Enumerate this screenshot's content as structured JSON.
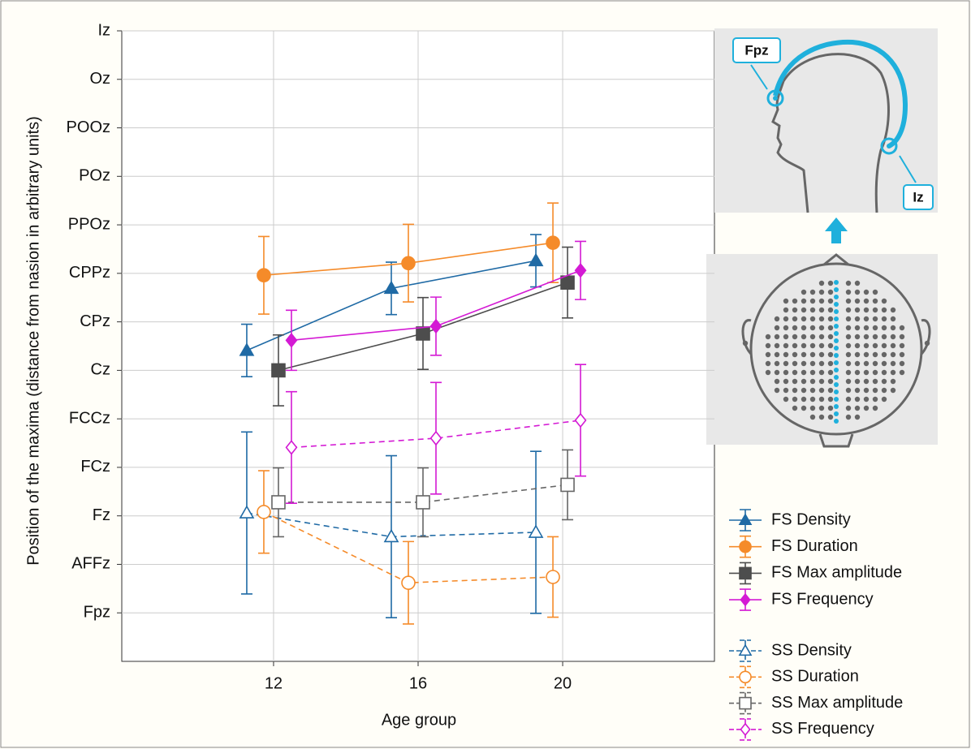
{
  "chart_data": {
    "type": "line",
    "xlabel": "Age group",
    "ylabel": "Position of the maxima (distance from nasion in arbitrary units)",
    "x": [
      12,
      16,
      20
    ],
    "xlim": [
      7.8,
      24.2
    ],
    "xticks": [
      12,
      16,
      20
    ],
    "ylim": [
      -1,
      12
    ],
    "yticks": [
      {
        "value": 0,
        "label": "Fpz"
      },
      {
        "value": 1,
        "label": "AFFz"
      },
      {
        "value": 2,
        "label": "Fz"
      },
      {
        "value": 3,
        "label": "FCz"
      },
      {
        "value": 4,
        "label": "FCCz"
      },
      {
        "value": 5,
        "label": "Cz"
      },
      {
        "value": 6,
        "label": "CPz"
      },
      {
        "value": 7,
        "label": "CPPz"
      },
      {
        "value": 8,
        "label": "PPOz"
      },
      {
        "value": 9,
        "label": "POz"
      },
      {
        "value": 10,
        "label": "POOz"
      },
      {
        "value": 11,
        "label": "Oz"
      },
      {
        "value": 12,
        "label": "Iz"
      }
    ],
    "grid": true,
    "series": [
      {
        "name": "FS Density",
        "color": "#1f6aa5",
        "marker": "triangle",
        "filled": true,
        "dashed": false,
        "values": [
          5.41,
          6.69,
          7.26
        ],
        "errors": [
          0.54,
          0.54,
          0.54
        ]
      },
      {
        "name": "FS Duration",
        "color": "#f58b2a",
        "marker": "circle",
        "filled": true,
        "dashed": false,
        "values": [
          6.96,
          7.21,
          7.63
        ],
        "errors": [
          0.8,
          0.8,
          0.82
        ]
      },
      {
        "name": "FS Max amplitude",
        "color": "#4d4d4d",
        "marker": "square",
        "filled": true,
        "dashed": false,
        "values": [
          5.0,
          5.76,
          6.81
        ],
        "errors": [
          0.73,
          0.74,
          0.73
        ]
      },
      {
        "name": "FS Frequency",
        "color": "#d41ad4",
        "marker": "diamond",
        "filled": true,
        "dashed": false,
        "values": [
          5.62,
          5.91,
          7.06
        ],
        "errors": [
          0.62,
          0.6,
          0.6
        ]
      },
      {
        "name": "SS Density",
        "color": "#1f6aa5",
        "marker": "triangle",
        "filled": false,
        "dashed": true,
        "values": [
          2.06,
          1.57,
          1.66
        ],
        "errors": [
          1.67,
          1.67,
          1.67
        ]
      },
      {
        "name": "SS Duration",
        "color": "#f58b2a",
        "marker": "circle",
        "filled": false,
        "dashed": true,
        "values": [
          2.08,
          0.62,
          0.74
        ],
        "errors": [
          0.85,
          0.85,
          0.83
        ]
      },
      {
        "name": "SS Max amplitude",
        "color": "#666666",
        "marker": "square",
        "filled": false,
        "dashed": true,
        "values": [
          2.28,
          2.28,
          2.64
        ],
        "errors": [
          0.71,
          0.71,
          0.72
        ]
      },
      {
        "name": "SS Frequency",
        "color": "#d41ad4",
        "marker": "diamond",
        "filled": false,
        "dashed": true,
        "values": [
          3.41,
          3.6,
          3.97
        ],
        "errors": [
          1.15,
          1.15,
          1.15
        ]
      }
    ],
    "annotations": [
      "Fpz",
      "Iz"
    ]
  }
}
